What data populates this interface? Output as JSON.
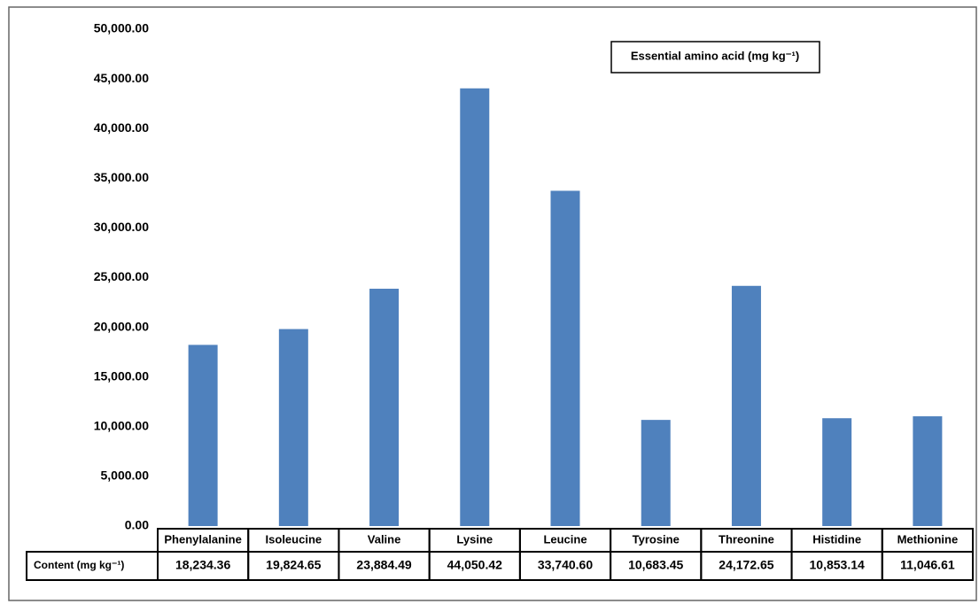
{
  "chart_data": {
    "type": "bar",
    "title": "Essential amino acid (mg kg⁻¹)",
    "categories": [
      "Phenylalanine",
      "Isoleucine",
      "Valine",
      "Lysine",
      "Leucine",
      "Tyrosine",
      "Threonine",
      "Histidine",
      "Methionine"
    ],
    "series": [
      {
        "name": "Content (mg kg⁻¹)",
        "color": "#4f81bd",
        "values": [
          18234.36,
          19824.65,
          23884.49,
          44050.42,
          33740.6,
          10683.45,
          24172.65,
          10853.14,
          11046.61
        ],
        "value_labels": [
          "18,234.36",
          "19,824.65",
          "23,884.49",
          "44,050.42",
          "33,740.60",
          "10,683.45",
          "24,172.65",
          "10,853.14",
          "11,046.61"
        ]
      }
    ],
    "ylim": [
      0,
      50000
    ],
    "yticks": [
      {
        "value": 0,
        "label": "0.00"
      },
      {
        "value": 5000,
        "label": "5,000.00"
      },
      {
        "value": 10000,
        "label": "10,000.00"
      },
      {
        "value": 15000,
        "label": "15,000.00"
      },
      {
        "value": 20000,
        "label": "20,000.00"
      },
      {
        "value": 25000,
        "label": "25,000.00"
      },
      {
        "value": 30000,
        "label": "30,000.00"
      },
      {
        "value": 35000,
        "label": "35,000.00"
      },
      {
        "value": 40000,
        "label": "40,000.00"
      },
      {
        "value": 45000,
        "label": "45,000.00"
      },
      {
        "value": 50000,
        "label": "50,000.00"
      }
    ]
  }
}
